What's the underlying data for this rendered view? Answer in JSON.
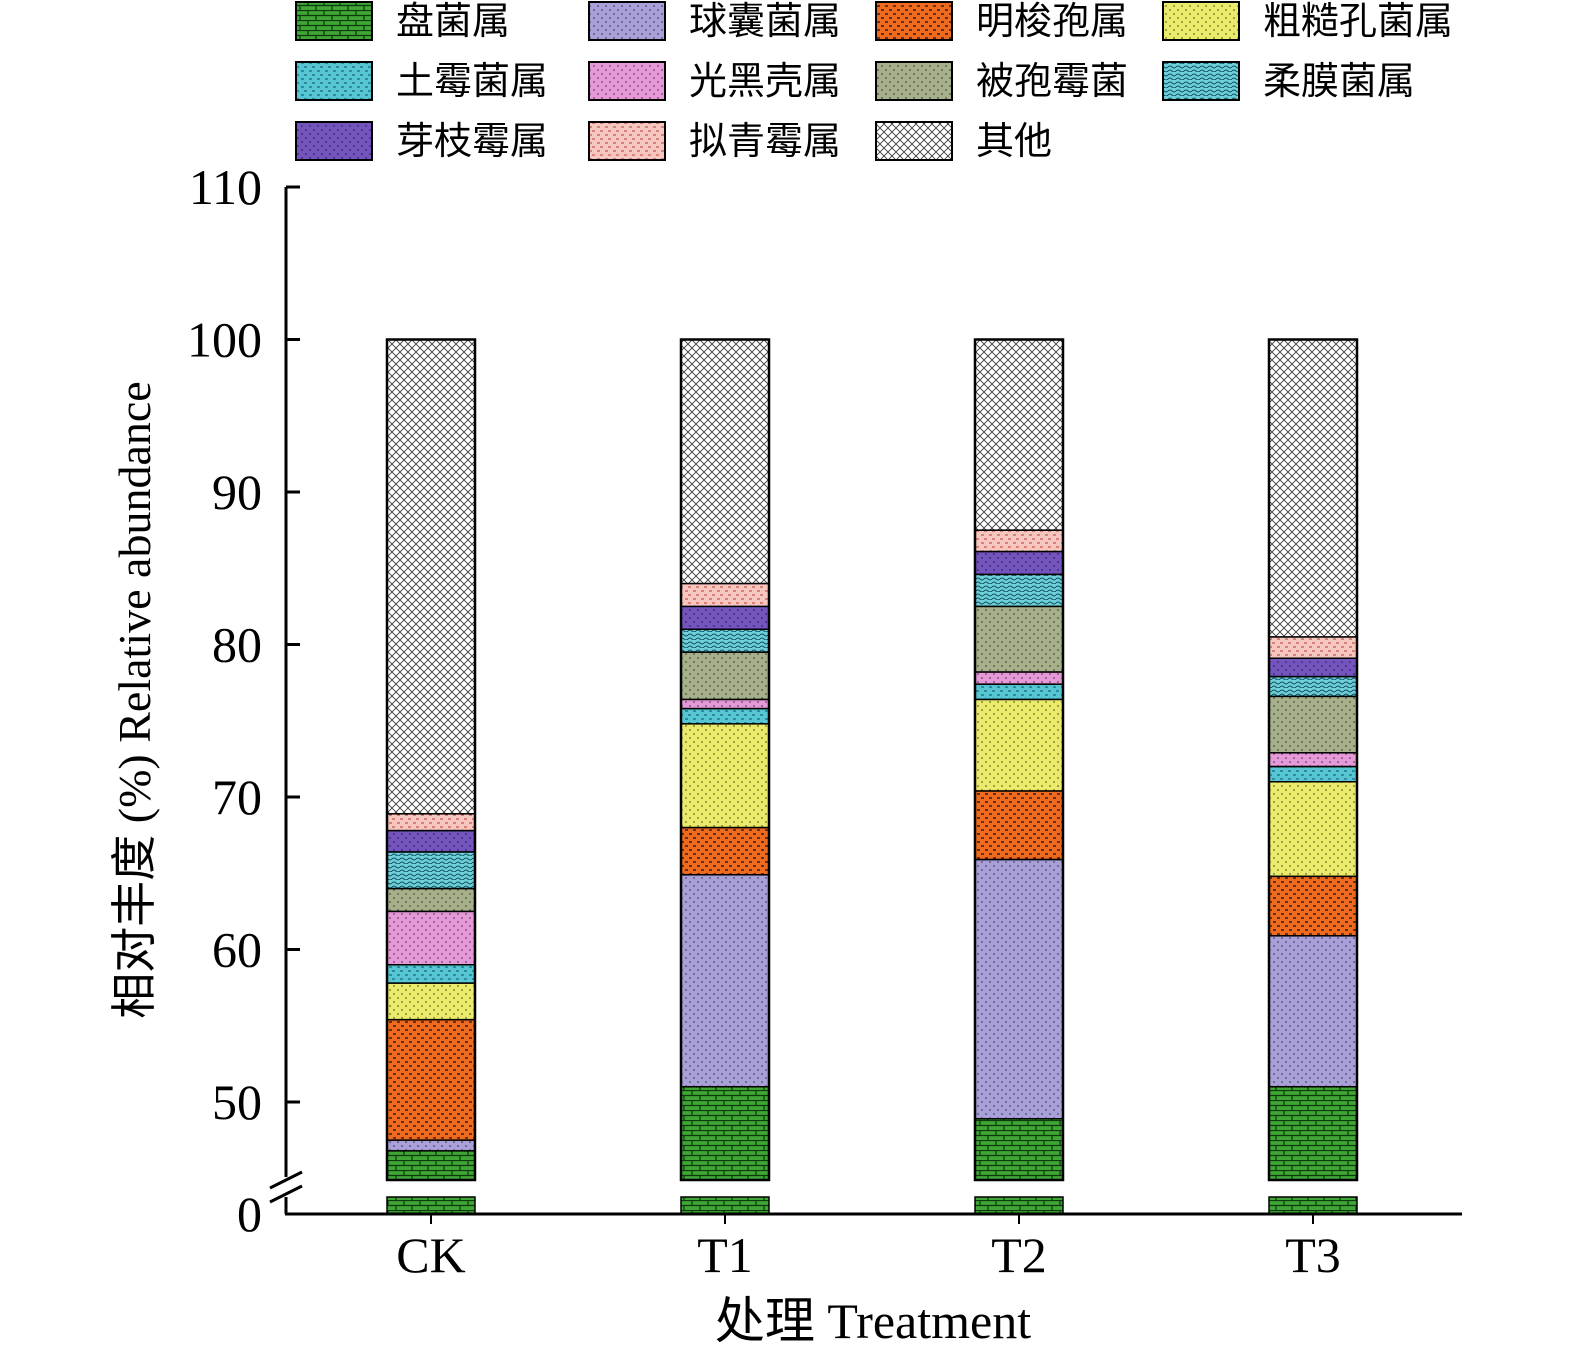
{
  "chart_data": {
    "type": "bar",
    "stacked": true,
    "categories": [
      "CK",
      "T1",
      "T2",
      "T3"
    ],
    "xlabel": "处理 Treatment",
    "ylabel": "相对丰度 (%) Relative abundance",
    "ylim": [
      0,
      110
    ],
    "y_axis_break": [
      0,
      44.5
    ],
    "yticks": [
      "0",
      "50",
      "60",
      "70",
      "80",
      "90",
      "100",
      "110"
    ],
    "grid": false,
    "legend_position": "top",
    "series": [
      {
        "name": "盘菌属",
        "color": "#3fa535",
        "values": [
          46.8,
          51.0,
          48.9,
          51.0
        ]
      },
      {
        "name": "球囊菌属",
        "color": "#a99fd9",
        "values": [
          0.7,
          13.9,
          17.0,
          9.9
        ]
      },
      {
        "name": "明梭孢属",
        "color": "#ee6a1f",
        "values": [
          7.9,
          3.1,
          4.5,
          3.9
        ]
      },
      {
        "name": "粗糙孔菌属",
        "color": "#eaea6b",
        "values": [
          2.4,
          6.8,
          6.0,
          6.2
        ]
      },
      {
        "name": "土霉菌属",
        "color": "#56c6d3",
        "values": [
          1.2,
          1.0,
          1.0,
          1.0
        ]
      },
      {
        "name": "光黑壳属",
        "color": "#e599d8",
        "values": [
          3.5,
          0.6,
          0.8,
          0.9
        ]
      },
      {
        "name": "被孢霉菌",
        "color": "#a6b08a",
        "values": [
          1.5,
          3.1,
          4.3,
          3.7
        ]
      },
      {
        "name": "柔膜菌属",
        "color": "#6fcfd6",
        "values": [
          2.4,
          1.5,
          2.1,
          1.3
        ]
      },
      {
        "name": "芽枝霉属",
        "color": "#7455c0",
        "values": [
          1.4,
          1.5,
          1.5,
          1.2
        ]
      },
      {
        "name": "拟青霉属",
        "color": "#f6c6c0",
        "values": [
          1.1,
          1.5,
          1.4,
          1.4
        ]
      },
      {
        "name": "其他",
        "color": "#ffffff",
        "values": [
          31.1,
          16.0,
          12.5,
          19.5
        ]
      }
    ]
  }
}
